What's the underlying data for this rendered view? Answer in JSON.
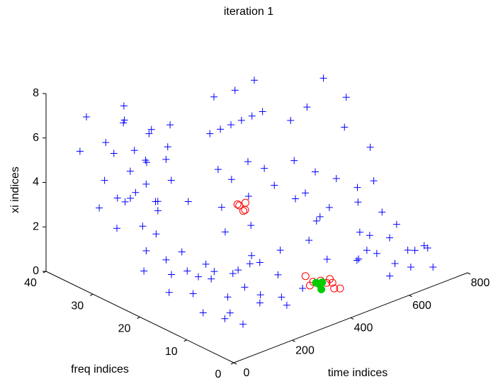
{
  "chart_data": {
    "type": "scatter3d",
    "title": "iteration 1",
    "xlabel": "time indices",
    "ylabel": "freq indices",
    "zlabel": "xi indices",
    "xlim": [
      0,
      800
    ],
    "ylim": [
      0,
      40
    ],
    "zlim": [
      0,
      8
    ],
    "xticks": [
      0,
      200,
      400,
      600,
      800
    ],
    "yticks": [
      0,
      10,
      20,
      30,
      40
    ],
    "zticks": [
      0,
      2,
      4,
      6,
      8
    ],
    "series": [
      {
        "color": "#0000ff",
        "marker": "plus",
        "points": [
          [
            120,
            14,
            0.2
          ],
          [
            150,
            18,
            0.5
          ],
          [
            180,
            12,
            0.1
          ],
          [
            200,
            20,
            0.8
          ],
          [
            220,
            15,
            0.3
          ],
          [
            250,
            10,
            0.4
          ],
          [
            270,
            17,
            0.9
          ],
          [
            300,
            13,
            0.2
          ],
          [
            320,
            19,
            0.6
          ],
          [
            340,
            11,
            0.1
          ],
          [
            140,
            22,
            1.0
          ],
          [
            170,
            25,
            1.2
          ],
          [
            210,
            23,
            0.7
          ],
          [
            240,
            26,
            1.1
          ],
          [
            260,
            21,
            0.3
          ],
          [
            290,
            24,
            0.5
          ],
          [
            310,
            8,
            0.2
          ],
          [
            330,
            15,
            1.3
          ],
          [
            360,
            13,
            0.8
          ],
          [
            380,
            9,
            0.5
          ],
          [
            130,
            10,
            0.3
          ],
          [
            160,
            8,
            0.1
          ],
          [
            190,
            16,
            1.5
          ],
          [
            230,
            12,
            1.0
          ],
          [
            280,
            14,
            1.6
          ],
          [
            350,
            18,
            1.2
          ],
          [
            100,
            20,
            0.6
          ],
          [
            110,
            26,
            0.9
          ],
          [
            150,
            28,
            1.4
          ],
          [
            200,
            29,
            1.8
          ],
          [
            150,
            38,
            2.3
          ],
          [
            180,
            36,
            2.8
          ],
          [
            210,
            34,
            3.1
          ],
          [
            240,
            37,
            3.6
          ],
          [
            270,
            33,
            2.5
          ],
          [
            120,
            35,
            4.0
          ],
          [
            160,
            32,
            3.3
          ],
          [
            200,
            38,
            4.5
          ],
          [
            230,
            31,
            2.9
          ],
          [
            260,
            35,
            4.2
          ],
          [
            100,
            39,
            5.0
          ],
          [
            140,
            36,
            5.5
          ],
          [
            190,
            33,
            5.2
          ],
          [
            220,
            37,
            6.0
          ],
          [
            250,
            30,
            4.8
          ],
          [
            130,
            33,
            2.0
          ],
          [
            170,
            30,
            2.2
          ],
          [
            280,
            36,
            3.9
          ],
          [
            300,
            32,
            3.4
          ],
          [
            310,
            29,
            2.7
          ],
          [
            90,
            37,
            6.8
          ],
          [
            120,
            31,
            7.0
          ],
          [
            170,
            34,
            7.2
          ],
          [
            200,
            30,
            6.4
          ],
          [
            240,
            33,
            5.7
          ],
          [
            280,
            31,
            6.1
          ],
          [
            110,
            30,
            3.6
          ],
          [
            150,
            28,
            4.4
          ],
          [
            190,
            28,
            3.0
          ],
          [
            320,
            34,
            4.6
          ],
          [
            400,
            30,
            5.2
          ],
          [
            420,
            29,
            5.4
          ],
          [
            440,
            28,
            5.6
          ],
          [
            460,
            27,
            5.8
          ],
          [
            480,
            26,
            6.0
          ],
          [
            500,
            25,
            6.2
          ],
          [
            430,
            31,
            6.6
          ],
          [
            470,
            29,
            6.9
          ],
          [
            520,
            28,
            7.2
          ],
          [
            380,
            27,
            4.0
          ],
          [
            410,
            26,
            3.5
          ],
          [
            450,
            25,
            4.2
          ],
          [
            490,
            24,
            3.8
          ],
          [
            360,
            25,
            2.6
          ],
          [
            420,
            23,
            3.0
          ],
          [
            560,
            22,
            4.0
          ],
          [
            600,
            20,
            3.5
          ],
          [
            640,
            18,
            3.2
          ],
          [
            680,
            16,
            2.8
          ],
          [
            720,
            15,
            3.0
          ],
          [
            580,
            24,
            5.5
          ],
          [
            620,
            23,
            6.0
          ],
          [
            660,
            22,
            7.2
          ],
          [
            700,
            20,
            5.0
          ],
          [
            740,
            17,
            4.2
          ],
          [
            600,
            17,
            2.2
          ],
          [
            650,
            14,
            2.5
          ],
          [
            700,
            12,
            2.0
          ],
          [
            550,
            19,
            2.9
          ],
          [
            690,
            19,
            6.5
          ],
          [
            620,
            12,
            0.3
          ],
          [
            650,
            10,
            0.6
          ],
          [
            680,
            8,
            0.2
          ],
          [
            710,
            11,
            0.9
          ],
          [
            740,
            9,
            0.4
          ],
          [
            760,
            6,
            0.7
          ],
          [
            630,
            6,
            0.1
          ],
          [
            670,
            4,
            0.5
          ],
          [
            700,
            5,
            1.0
          ],
          [
            730,
            3,
            0.3
          ],
          [
            600,
            9,
            1.1
          ],
          [
            640,
            13,
            1.3
          ],
          [
            690,
            14,
            0.8
          ],
          [
            750,
            12,
            1.2
          ],
          [
            780,
            8,
            0.5
          ],
          [
            400,
            15,
            1.5
          ],
          [
            450,
            12,
            2.0
          ],
          [
            480,
            10,
            1.2
          ],
          [
            520,
            14,
            2.5
          ],
          [
            550,
            8,
            1.0
          ],
          [
            380,
            20,
            2.2
          ],
          [
            340,
            23,
            1.8
          ],
          [
            500,
            18,
            3.0
          ],
          [
            460,
            20,
            3.6
          ],
          [
            540,
            16,
            2.0
          ]
        ]
      },
      {
        "color": "#ff0000",
        "marker": "circle",
        "points": [
          [
            400,
            8,
            0.8
          ],
          [
            410,
            7,
            0.9
          ],
          [
            420,
            8,
            0.6
          ],
          [
            430,
            7,
            0.7
          ],
          [
            440,
            6,
            0.5
          ],
          [
            390,
            9,
            1.0
          ],
          [
            450,
            7,
            0.6
          ],
          [
            460,
            6,
            0.4
          ],
          [
            405,
            9,
            0.5
          ],
          [
            425,
            6,
            1.0
          ],
          [
            340,
            20,
            3.3
          ],
          [
            350,
            21,
            3.2
          ],
          [
            360,
            20,
            3.0
          ],
          [
            345,
            19,
            3.5
          ],
          [
            370,
            21,
            2.8
          ]
        ]
      },
      {
        "color": "#00cc00",
        "marker": "disc",
        "points": [
          [
            410,
            8,
            0.7
          ],
          [
            415,
            7,
            0.8
          ],
          [
            420,
            8,
            0.6
          ],
          [
            412,
            7,
            0.5
          ]
        ]
      }
    ]
  }
}
